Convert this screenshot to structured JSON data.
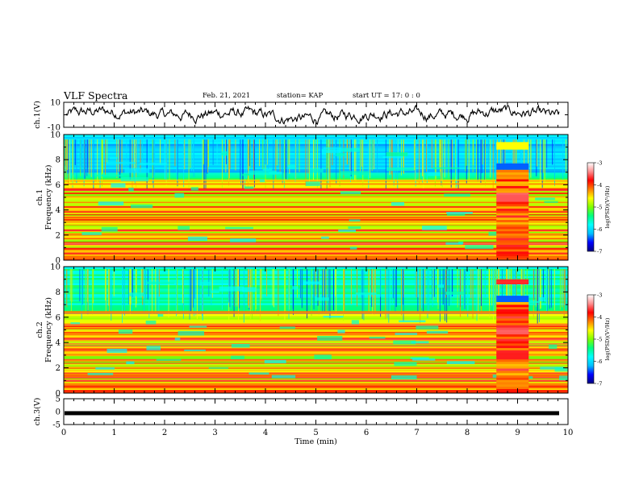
{
  "header": {
    "title": "VLF Spectra",
    "date": "Feb. 21, 2021",
    "station": "station= KAP",
    "start": "start  UT =   17: 0  : 0"
  },
  "chart_data": [
    {
      "type": "line",
      "panel": "ch1-waveform",
      "ylabel": "ch.1(V)",
      "ylim": [
        -10,
        10
      ],
      "yticks": [
        "10",
        "-10"
      ],
      "xlim": [
        0,
        10
      ],
      "series_color": "#000000"
    },
    {
      "type": "heatmap",
      "panel": "ch1-spectrogram",
      "ylabel": "ch.1 Frequency (kHz)",
      "ylabel_lines": [
        "ch.1",
        "Frequency (kHz)"
      ],
      "ylim": [
        0,
        10
      ],
      "yticks": [
        "0",
        "2",
        "4",
        "6",
        "8",
        "10"
      ],
      "xlim": [
        0,
        10
      ],
      "colorbar": {
        "label": "log(PSD)(V²/Hz)",
        "range": [
          -7,
          -3
        ],
        "ticks": [
          "-3",
          "-4",
          "-5",
          "-6",
          "-7"
        ]
      },
      "notes": "broadband burst between ~8.6 and ~9.2 min"
    },
    {
      "type": "heatmap",
      "panel": "ch2-spectrogram",
      "ylabel": "ch.2 Frequency (kHz)",
      "ylabel_lines": [
        "ch.2",
        "Frequency (kHz)"
      ],
      "ylim": [
        0,
        10
      ],
      "yticks": [
        "0",
        "2",
        "4",
        "6",
        "8",
        "10"
      ],
      "xlim": [
        0,
        10
      ],
      "colorbar": {
        "label": "log(PSD)(V²/Hz)",
        "range": [
          -7,
          -3
        ],
        "ticks": [
          "-3",
          "-4",
          "-5",
          "-6",
          "-7"
        ]
      }
    },
    {
      "type": "line",
      "panel": "ch3-waveform",
      "ylabel": "ch.3(V)",
      "ylim": [
        -5,
        5
      ],
      "yticks": [
        "5",
        "0",
        "-5"
      ],
      "xlim": [
        0,
        10
      ],
      "series_value": -0.6,
      "xlabel": "Time  (min)",
      "xticks": [
        "0",
        "1",
        "2",
        "3",
        "4",
        "5",
        "6",
        "7",
        "8",
        "9",
        "10"
      ]
    }
  ],
  "colors": {
    "colormap": [
      "#000080",
      "#0000ff",
      "#00bfff",
      "#00ffff",
      "#00ff80",
      "#7fff00",
      "#ffff00",
      "#ff8000",
      "#ff0000",
      "#ff9090",
      "#ffffff"
    ]
  }
}
